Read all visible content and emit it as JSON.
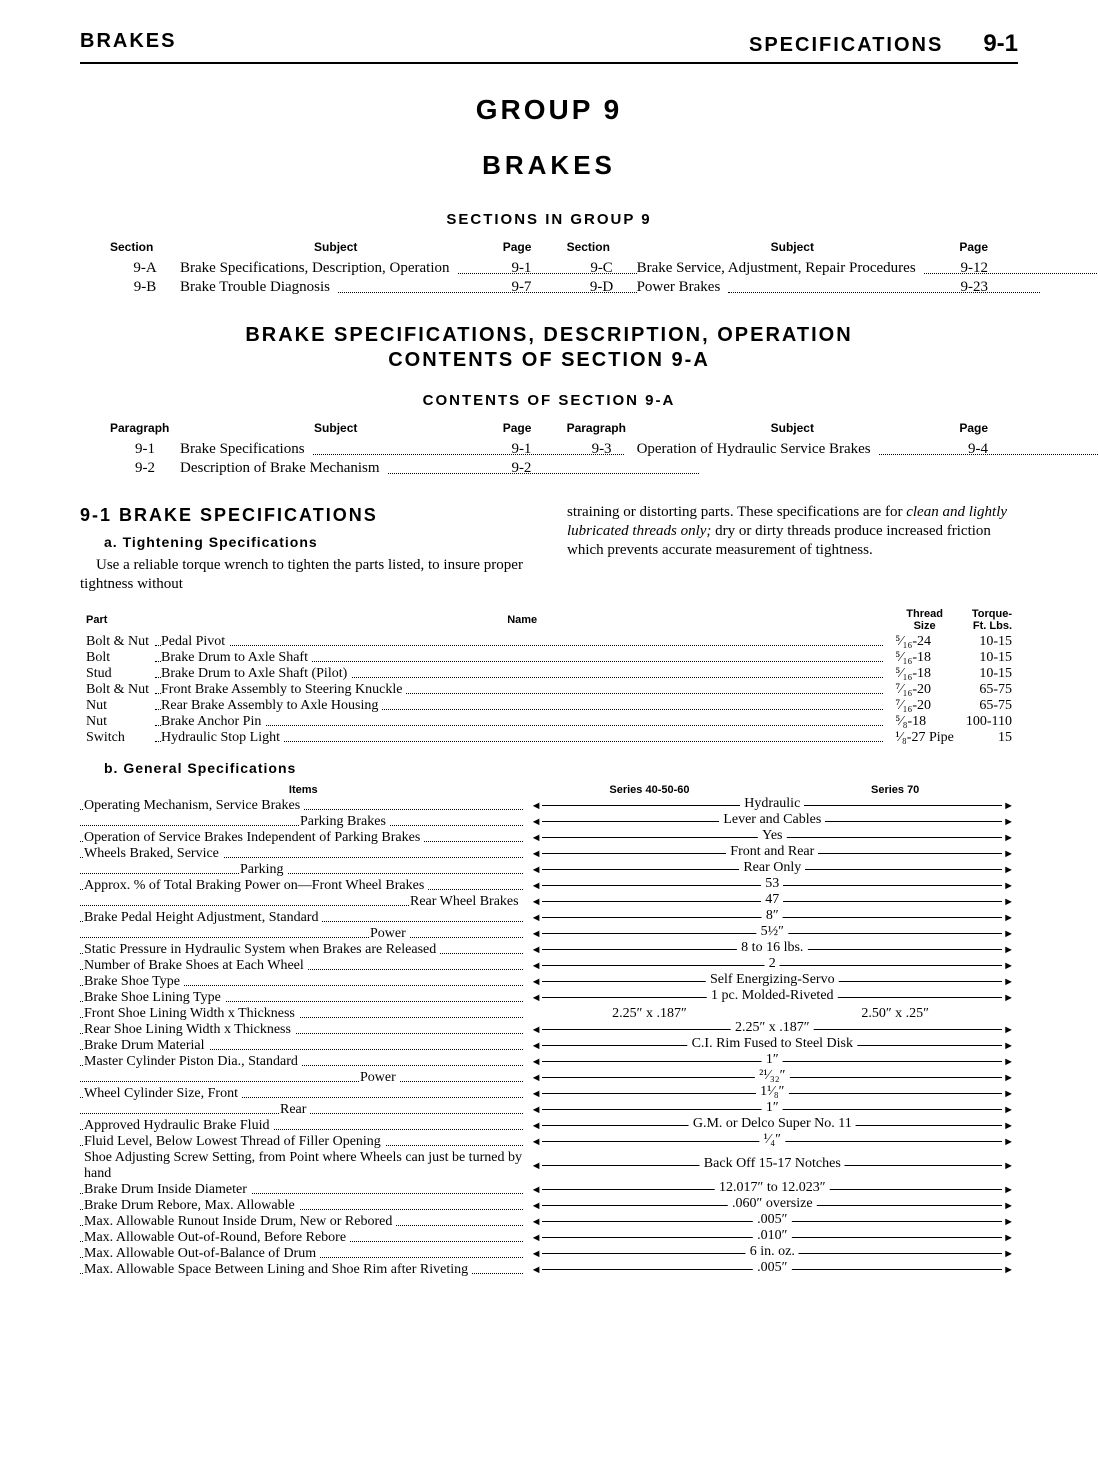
{
  "header": {
    "left": "BRAKES",
    "right": "SPECIFICATIONS",
    "pagenum": "9-1"
  },
  "titles": {
    "group": "GROUP 9",
    "brakes": "BRAKES",
    "sections_in_group": "SECTIONS IN GROUP 9",
    "big1": "BRAKE SPECIFICATIONS, DESCRIPTION, OPERATION",
    "big2": "CONTENTS OF SECTION 9-A",
    "contents_9a": "CONTENTS OF SECTION 9-A",
    "spec_heading": "9-1 BRAKE SPECIFICATIONS",
    "sub_a": "a. Tightening Specifications",
    "sub_b": "b. General Specifications"
  },
  "toc_sections": {
    "head": {
      "c1": "Section",
      "c2": "Subject",
      "c3": "Page"
    },
    "left": [
      {
        "c1": "9-A",
        "c2": "Brake Specifications, Description, Operation",
        "c3": "9-1"
      },
      {
        "c1": "9-B",
        "c2": "Brake Trouble Diagnosis",
        "c3": "9-7"
      }
    ],
    "right": [
      {
        "c1": "9-C",
        "c2": "Brake Service, Adjustment, Repair Procedures",
        "c3": "9-12"
      },
      {
        "c1": "9-D",
        "c2": "Power Brakes",
        "c3": "9-23"
      }
    ]
  },
  "toc_paragraphs": {
    "head": {
      "c1": "Paragraph",
      "c2": "Subject",
      "c3": "Page"
    },
    "left": [
      {
        "c1": "9-1",
        "c2": "Brake Specifications",
        "c3": "9-1"
      },
      {
        "c1": "9-2",
        "c2": "Description of Brake Mechanism",
        "c3": "9-2"
      }
    ],
    "right": [
      {
        "c1": "9-3",
        "c2": "Operation of Hydraulic Service Brakes",
        "c3": "9-4"
      }
    ]
  },
  "body_text": {
    "p1": "Use a reliable torque wrench to tighten the parts listed, to insure proper tightness without",
    "p2a": "straining or distorting parts. These specifications are for ",
    "p2b": "clean and lightly lubricated threads only;",
    "p2c": " dry or dirty threads produce increased friction which prevents accurate measurement of tightness."
  },
  "tight_table": {
    "head": {
      "part": "Part",
      "name": "Name",
      "size": "Thread\nSize",
      "torque": "Torque-\nFt. Lbs."
    },
    "rows": [
      {
        "part": "Bolt & Nut",
        "name": "Pedal Pivot",
        "size": "⁵⁄₁₆-24",
        "torque": "10-15"
      },
      {
        "part": "Bolt",
        "name": "Brake Drum to Axle Shaft",
        "size": "⁵⁄₁₆-18",
        "torque": "10-15"
      },
      {
        "part": "Stud",
        "name": "Brake Drum to Axle Shaft (Pilot)",
        "size": "⁵⁄₁₆-18",
        "torque": "10-15"
      },
      {
        "part": "Bolt & Nut",
        "name": "Front Brake Assembly to Steering Knuckle",
        "size": "⁷⁄₁₆-20",
        "torque": "65-75"
      },
      {
        "part": "Nut",
        "name": "Rear Brake Assembly to Axle Housing",
        "size": "⁷⁄₁₆-20",
        "torque": "65-75"
      },
      {
        "part": "Nut",
        "name": "Brake Anchor Pin",
        "size": "⁵⁄₈-18",
        "torque": "100-110"
      },
      {
        "part": "Switch",
        "name": "Hydraulic Stop Light",
        "size": "¹⁄₈-27 Pipe",
        "torque": "15"
      }
    ]
  },
  "gen_spec": {
    "head": {
      "items": "Items",
      "s1": "Series 40-50-60",
      "s2": "Series 70"
    },
    "rows": [
      {
        "item": "Operating Mechanism, Service Brakes",
        "type": "span",
        "label": "Hydraulic"
      },
      {
        "item": "Parking Brakes",
        "indent": 220,
        "type": "span",
        "label": "Lever and Cables"
      },
      {
        "item": "Operation of Service Brakes Independent of Parking Brakes",
        "type": "span",
        "label": "Yes"
      },
      {
        "item": "Wheels Braked, Service",
        "type": "span",
        "label": "Front and Rear"
      },
      {
        "item": "Parking",
        "indent": 160,
        "type": "span",
        "label": "Rear Only"
      },
      {
        "item": "Approx. % of Total Braking Power on—Front Wheel Brakes",
        "type": "span",
        "label": "53"
      },
      {
        "item": "Rear Wheel Brakes",
        "indent": 330,
        "type": "span",
        "label": "47"
      },
      {
        "item": "Brake Pedal Height Adjustment, Standard",
        "type": "span",
        "label": "8″"
      },
      {
        "item": "Power",
        "indent": 290,
        "type": "span",
        "label": "5½″"
      },
      {
        "item": "Static Pressure in Hydraulic System when Brakes are Released",
        "type": "span",
        "label": "8 to 16 lbs."
      },
      {
        "item": "Number of Brake Shoes at Each Wheel",
        "type": "span",
        "label": "2"
      },
      {
        "item": "Brake Shoe Type",
        "type": "span",
        "label": "Self Energizing-Servo"
      },
      {
        "item": "Brake Shoe Lining Type",
        "type": "span",
        "label": "1 pc. Molded-Riveted"
      },
      {
        "item": "Front Shoe Lining Width x Thickness",
        "type": "split",
        "left": "2.25″ x .187″",
        "right": "2.50″ x .25″"
      },
      {
        "item": "Rear Shoe Lining Width x Thickness",
        "type": "span",
        "label": "2.25″ x .187″"
      },
      {
        "item": "Brake Drum Material",
        "type": "span",
        "label": "C.I. Rim Fused to Steel Disk"
      },
      {
        "item": "Master Cylinder Piston Dia., Standard",
        "type": "span",
        "label": "1″"
      },
      {
        "item": "Power",
        "indent": 280,
        "type": "span",
        "label": "²¹⁄₃₂″"
      },
      {
        "item": "Wheel Cylinder Size, Front",
        "type": "span",
        "label": "1¹⁄₈″"
      },
      {
        "item": "Rear",
        "indent": 200,
        "type": "span",
        "label": "1″"
      },
      {
        "item": "Approved Hydraulic Brake Fluid",
        "type": "span",
        "label": "G.M. or Delco Super No. 11"
      },
      {
        "item": "Fluid Level, Below Lowest Thread of Filler Opening",
        "type": "span",
        "label": "¹⁄₄″"
      },
      {
        "item": "Shoe Adjusting Screw Setting, from Point where Wheels can just be turned by hand",
        "type": "span",
        "label": "Back Off 15-17 Notches",
        "nodots": true
      },
      {
        "item": "Brake Drum Inside Diameter",
        "type": "span",
        "label": "12.017″ to 12.023″"
      },
      {
        "item": "Brake Drum Rebore, Max. Allowable",
        "type": "span",
        "label": ".060″ oversize"
      },
      {
        "item": "Max. Allowable Runout Inside Drum, New or Rebored",
        "type": "span",
        "label": ".005″"
      },
      {
        "item": "Max. Allowable Out-of-Round, Before Rebore",
        "type": "span",
        "label": ".010″"
      },
      {
        "item": "Max. Allowable Out-of-Balance of Drum",
        "type": "span",
        "label": "6 in. oz."
      },
      {
        "item": "Max. Allowable Space Between Lining and Shoe Rim after Riveting",
        "type": "span",
        "label": ".005″"
      }
    ]
  }
}
